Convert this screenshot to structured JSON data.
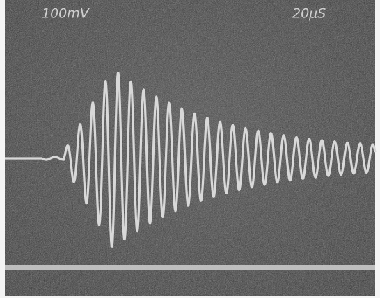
{
  "screen": {
    "vertical_scale": "100mV",
    "time_scale": "20μS"
  }
}
